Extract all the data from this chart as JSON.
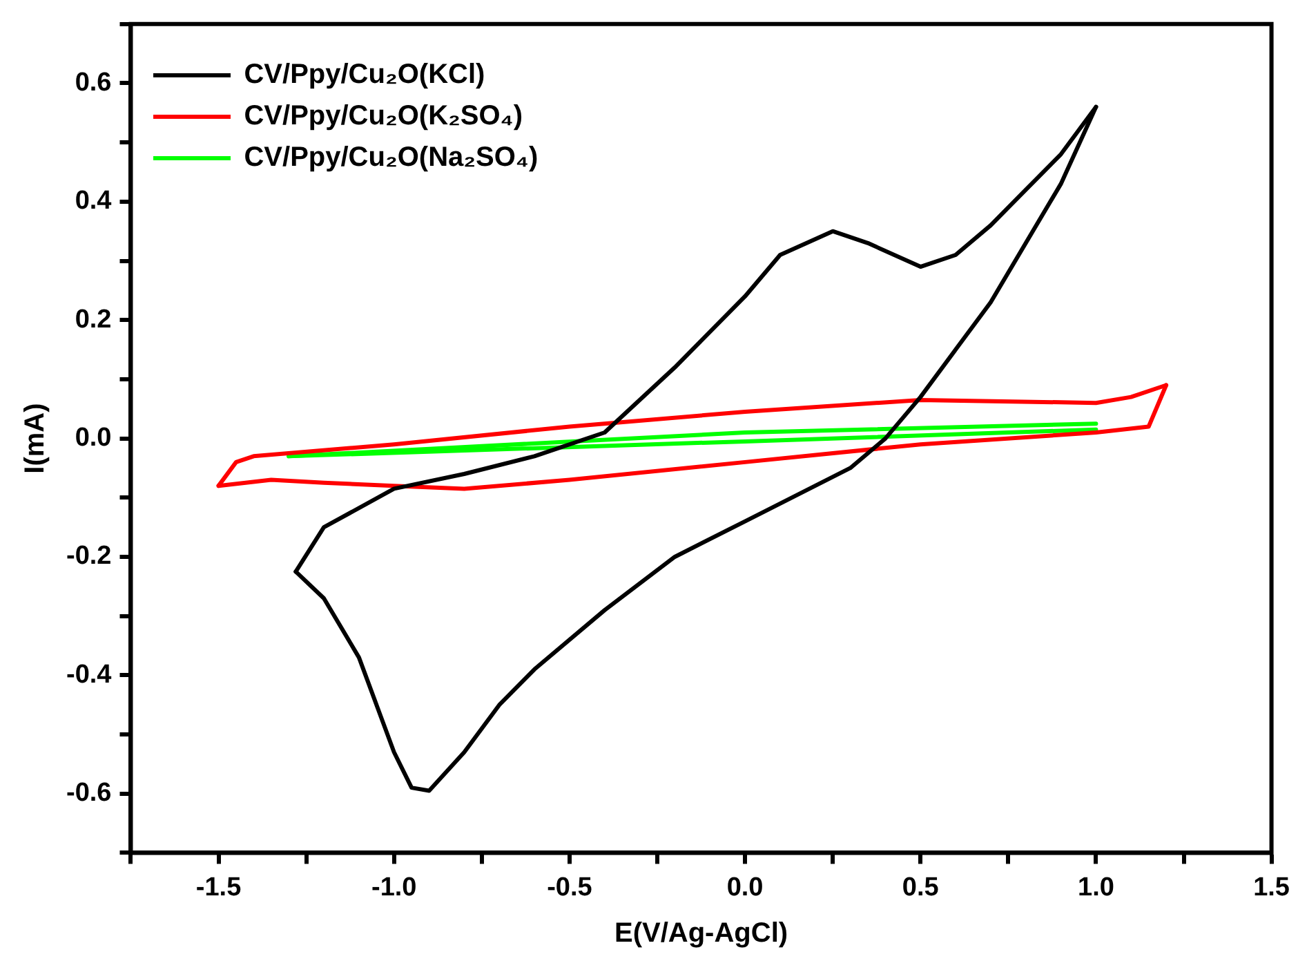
{
  "chart_data": {
    "type": "line",
    "xlabel": "E(V/Ag-AgCl)",
    "ylabel": "I(mA)",
    "xlim": [
      -1.75,
      1.5
    ],
    "xticks": [
      {
        "value": -1.75,
        "label": null
      },
      -1.5,
      {
        "value": -1.25,
        "label": null
      },
      {
        "value": -1,
        "label": "-1.0"
      },
      {
        "value": -0.75,
        "label": null
      },
      -0.5,
      {
        "value": -0.25,
        "label": null
      },
      {
        "value": 0,
        "label": "0.0"
      },
      {
        "value": 0.25,
        "label": null
      },
      0.5,
      {
        "value": 0.75,
        "label": null
      },
      {
        "value": 1,
        "label": "1.0"
      },
      {
        "value": 1.25,
        "label": null
      },
      1.5
    ],
    "ylim": [
      -0.7,
      0.7
    ],
    "yticks": [
      {
        "value": -0.7,
        "label": null
      },
      -0.6,
      {
        "value": -0.5,
        "label": null
      },
      -0.4,
      {
        "value": -0.3,
        "label": null
      },
      -0.2,
      {
        "value": -0.1,
        "label": null
      },
      {
        "value": 0,
        "label": "0.0"
      },
      {
        "value": 0.1,
        "label": null
      },
      0.2,
      {
        "value": 0.3,
        "label": null
      },
      0.4,
      {
        "value": 0.5,
        "label": null
      },
      0.6,
      {
        "value": 0.7,
        "label": null
      }
    ],
    "grid": false,
    "legend": "top left",
    "marker": "none",
    "line_style": "solid",
    "series": [
      {
        "name": "CV/Ppy/Cu₂O(KCl)",
        "color": "#000000",
        "x": [
          -1.28,
          -1.2,
          -1.0,
          -0.8,
          -0.6,
          -0.4,
          -0.2,
          0.0,
          0.1,
          0.25,
          0.35,
          0.5,
          0.6,
          0.7,
          0.8,
          0.9,
          1.0
        ],
        "values": [
          -0.225,
          -0.15,
          -0.085,
          -0.06,
          -0.03,
          0.01,
          0.12,
          0.24,
          0.31,
          0.35,
          0.33,
          0.29,
          0.31,
          0.36,
          0.42,
          0.48,
          0.56
        ]
      },
      {
        "color": "#000000",
        "x": [
          -1.28,
          -1.2,
          -1.1,
          -1.05,
          -1.0,
          -0.95,
          -0.9,
          -0.8,
          -0.7,
          -0.6,
          -0.4,
          -0.2,
          0.0,
          0.2,
          0.3,
          0.4,
          0.5,
          0.6,
          0.7,
          0.8,
          0.9,
          1.0
        ],
        "values": [
          -0.225,
          -0.27,
          -0.37,
          -0.45,
          -0.53,
          -0.59,
          -0.595,
          -0.53,
          -0.45,
          -0.39,
          -0.29,
          -0.2,
          -0.14,
          -0.08,
          -0.05,
          0.0,
          0.07,
          0.15,
          0.23,
          0.33,
          0.43,
          0.56
        ]
      },
      {
        "name": "CV/Ppy/Cu₂O(K₂SO₄)",
        "color": "#ff0000",
        "x": [
          -1.5,
          -1.45,
          -1.4,
          -1.0,
          -0.5,
          0.0,
          0.5,
          1.0,
          1.1,
          1.2
        ],
        "values": [
          -0.08,
          -0.04,
          -0.03,
          -0.01,
          0.02,
          0.045,
          0.065,
          0.06,
          0.07,
          0.09
        ]
      },
      {
        "color": "#ff0000",
        "x": [
          -1.5,
          -1.35,
          -1.2,
          -1.0,
          -0.8,
          -0.5,
          0.0,
          0.5,
          1.0,
          1.15,
          1.2
        ],
        "values": [
          -0.08,
          -0.07,
          -0.075,
          -0.08,
          -0.085,
          -0.07,
          -0.04,
          -0.01,
          0.01,
          0.02,
          0.09
        ]
      },
      {
        "name": "CV/Ppy/Cu₂O(Na₂SO₄)",
        "color": "#00ff00",
        "x": [
          -1.3,
          0.0,
          1.0
        ],
        "values": [
          -0.03,
          0.01,
          0.025
        ]
      },
      {
        "color": "#00ff00",
        "x": [
          -1.3,
          0.0,
          1.0
        ],
        "values": [
          -0.03,
          -0.005,
          0.015
        ]
      }
    ]
  }
}
